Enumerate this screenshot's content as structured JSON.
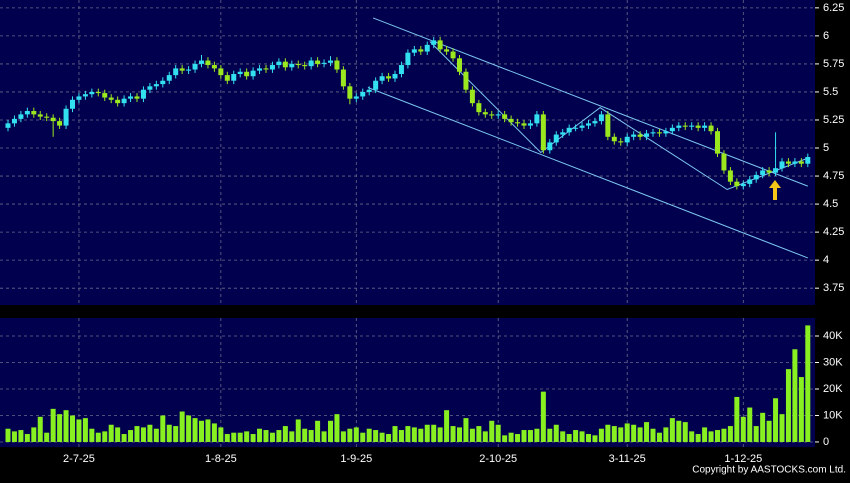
{
  "chart_data": [
    {
      "type": "candlestick",
      "up_color": "#33e0f0",
      "down_color": "#9be81e",
      "trendline_color": "#7ec8f0",
      "grid": true,
      "ylim": [
        3.6,
        6.32
      ],
      "yticks": [
        6.25,
        6,
        5.75,
        5.5,
        5.25,
        5,
        4.75,
        4.5,
        4.25,
        4,
        3.75
      ],
      "categories": [
        null,
        null,
        null,
        null,
        null,
        null,
        null,
        null,
        null,
        null,
        null,
        "2-7-25",
        null,
        null,
        null,
        null,
        null,
        null,
        null,
        null,
        null,
        null,
        null,
        null,
        null,
        null,
        null,
        null,
        null,
        null,
        null,
        null,
        null,
        "1-8-25",
        null,
        null,
        null,
        null,
        null,
        null,
        null,
        null,
        null,
        null,
        null,
        null,
        null,
        null,
        null,
        null,
        null,
        null,
        null,
        null,
        "1-9-25",
        null,
        null,
        null,
        null,
        null,
        null,
        null,
        null,
        null,
        null,
        null,
        null,
        null,
        null,
        null,
        null,
        null,
        null,
        null,
        null,
        null,
        "2-10-25",
        null,
        null,
        null,
        null,
        null,
        null,
        null,
        null,
        null,
        null,
        null,
        null,
        null,
        null,
        null,
        null,
        null,
        null,
        null,
        "3-11-25",
        null,
        null,
        null,
        null,
        null,
        null,
        null,
        null,
        null,
        null,
        null,
        null,
        null,
        null,
        null,
        null,
        null,
        "1-12-25",
        null,
        null,
        null,
        null,
        null,
        null,
        null,
        null,
        null,
        null
      ],
      "open": [
        5.18,
        5.22,
        5.26,
        5.3,
        5.33,
        5.3,
        5.28,
        5.27,
        5.24,
        5.2,
        5.35,
        5.43,
        5.46,
        5.48,
        5.5,
        5.49,
        5.45,
        5.43,
        5.4,
        5.44,
        5.46,
        5.44,
        5.52,
        5.55,
        5.57,
        5.6,
        5.65,
        5.71,
        5.69,
        5.7,
        5.75,
        5.78,
        5.74,
        5.71,
        5.65,
        5.6,
        5.66,
        5.68,
        5.64,
        5.69,
        5.71,
        5.7,
        5.74,
        5.77,
        5.72,
        5.75,
        5.74,
        5.73,
        5.78,
        5.75,
        5.76,
        5.78,
        5.7,
        5.55,
        5.44,
        5.46,
        5.5,
        5.52,
        5.6,
        5.64,
        5.62,
        5.66,
        5.74,
        5.85,
        5.88,
        5.86,
        5.92,
        5.96,
        5.88,
        5.86,
        5.8,
        5.68,
        5.52,
        5.4,
        5.32,
        5.3,
        5.29,
        5.3,
        5.26,
        5.23,
        5.22,
        5.2,
        5.22,
        5.3,
        4.98,
        5.05,
        5.12,
        5.14,
        5.18,
        5.18,
        5.2,
        5.22,
        5.24,
        5.3,
        5.1,
        5.06,
        5.05,
        5.1,
        5.12,
        5.1,
        5.13,
        5.14,
        5.13,
        5.15,
        5.18,
        5.2,
        5.19,
        5.2,
        5.18,
        5.2,
        5.15,
        4.95,
        4.8,
        4.7,
        4.66,
        4.68,
        4.72,
        4.76,
        4.8,
        4.78,
        4.82,
        4.88,
        4.86,
        4.88,
        4.86
      ],
      "high": [
        5.25,
        5.29,
        5.33,
        5.36,
        5.36,
        5.33,
        5.31,
        5.3,
        5.27,
        5.38,
        5.46,
        5.49,
        5.51,
        5.53,
        5.53,
        5.52,
        5.48,
        5.46,
        5.47,
        5.49,
        5.49,
        5.55,
        5.58,
        5.6,
        5.63,
        5.68,
        5.74,
        5.74,
        5.73,
        5.78,
        5.83,
        5.81,
        5.77,
        5.74,
        5.68,
        5.69,
        5.71,
        5.71,
        5.72,
        5.74,
        5.74,
        5.77,
        5.8,
        5.8,
        5.78,
        5.78,
        5.77,
        5.81,
        5.81,
        5.79,
        5.82,
        5.81,
        5.73,
        5.58,
        5.49,
        5.53,
        5.55,
        5.63,
        5.67,
        5.67,
        5.69,
        5.77,
        5.88,
        5.91,
        5.91,
        5.95,
        5.99,
        5.99,
        5.91,
        5.89,
        5.83,
        5.71,
        5.55,
        5.43,
        5.35,
        5.33,
        5.33,
        5.33,
        5.29,
        5.26,
        5.25,
        5.25,
        5.33,
        5.33,
        5.08,
        5.15,
        5.17,
        5.21,
        5.21,
        5.23,
        5.25,
        5.27,
        5.33,
        5.33,
        5.13,
        5.09,
        5.13,
        5.15,
        5.15,
        5.16,
        5.17,
        5.17,
        5.18,
        5.21,
        5.23,
        5.23,
        5.23,
        5.23,
        5.23,
        5.23,
        5.18,
        4.98,
        4.83,
        4.73,
        4.71,
        4.75,
        4.79,
        4.83,
        4.83,
        5.14,
        4.91,
        4.91,
        4.91,
        4.91,
        4.95
      ],
      "low": [
        5.15,
        5.19,
        5.23,
        5.27,
        5.27,
        5.25,
        5.24,
        5.1,
        5.17,
        5.17,
        5.32,
        5.4,
        5.43,
        5.45,
        5.46,
        5.42,
        5.4,
        5.37,
        5.37,
        5.41,
        5.41,
        5.41,
        5.49,
        5.52,
        5.54,
        5.57,
        5.62,
        5.66,
        5.66,
        5.67,
        5.72,
        5.71,
        5.68,
        5.62,
        5.57,
        5.57,
        5.63,
        5.61,
        5.61,
        5.66,
        5.67,
        5.67,
        5.71,
        5.69,
        5.69,
        5.71,
        5.7,
        5.7,
        5.72,
        5.72,
        5.73,
        5.67,
        5.52,
        5.39,
        5.41,
        5.43,
        5.47,
        5.49,
        5.57,
        5.59,
        5.59,
        5.63,
        5.71,
        5.82,
        5.83,
        5.83,
        5.89,
        5.85,
        5.83,
        5.77,
        5.65,
        5.49,
        5.37,
        5.29,
        5.27,
        5.26,
        5.26,
        5.23,
        5.2,
        5.19,
        5.17,
        5.17,
        5.19,
        4.95,
        4.95,
        5.02,
        5.09,
        5.11,
        5.15,
        5.15,
        5.17,
        5.19,
        5.21,
        5.07,
        5.03,
        5.02,
        5.02,
        5.07,
        5.07,
        5.07,
        5.1,
        5.1,
        5.1,
        5.12,
        5.15,
        5.16,
        5.16,
        5.15,
        5.15,
        5.12,
        4.92,
        4.77,
        4.67,
        4.63,
        4.63,
        4.65,
        4.69,
        4.73,
        4.75,
        4.75,
        4.79,
        4.83,
        4.83,
        4.83,
        4.83
      ],
      "close": [
        5.22,
        5.26,
        5.3,
        5.33,
        5.3,
        5.28,
        5.27,
        5.24,
        5.2,
        5.35,
        5.43,
        5.46,
        5.48,
        5.5,
        5.49,
        5.45,
        5.43,
        5.4,
        5.44,
        5.46,
        5.44,
        5.52,
        5.55,
        5.57,
        5.6,
        5.65,
        5.71,
        5.69,
        5.7,
        5.75,
        5.78,
        5.74,
        5.71,
        5.65,
        5.6,
        5.66,
        5.68,
        5.64,
        5.69,
        5.71,
        5.7,
        5.74,
        5.77,
        5.72,
        5.75,
        5.74,
        5.73,
        5.78,
        5.75,
        5.76,
        5.78,
        5.7,
        5.55,
        5.44,
        5.46,
        5.5,
        5.52,
        5.6,
        5.64,
        5.62,
        5.66,
        5.74,
        5.85,
        5.88,
        5.86,
        5.92,
        5.96,
        5.88,
        5.86,
        5.8,
        5.68,
        5.52,
        5.4,
        5.32,
        5.3,
        5.29,
        5.3,
        5.26,
        5.23,
        5.22,
        5.2,
        5.22,
        5.3,
        4.98,
        5.05,
        5.12,
        5.14,
        5.18,
        5.18,
        5.2,
        5.22,
        5.24,
        5.3,
        5.1,
        5.06,
        5.05,
        5.1,
        5.12,
        5.1,
        5.13,
        5.14,
        5.13,
        5.15,
        5.18,
        5.2,
        5.19,
        5.2,
        5.18,
        5.2,
        5.15,
        4.95,
        4.8,
        4.7,
        4.66,
        4.68,
        4.72,
        4.76,
        4.8,
        4.78,
        4.82,
        4.88,
        4.86,
        4.88,
        4.86,
        4.92
      ],
      "trendlines": [
        [
          [
            56.6,
            6.16
          ],
          [
            124,
            4.66
          ]
        ],
        [
          [
            55.8,
            5.54
          ],
          [
            124,
            4.02
          ]
        ],
        [
          [
            65.4,
            5.95
          ],
          [
            82.6,
            4.96
          ],
          [
            91.8,
            5.36
          ],
          [
            111.5,
            4.63
          ],
          [
            124,
            4.91
          ]
        ]
      ]
    },
    {
      "type": "bar",
      "color": "#88f020",
      "grid": true,
      "ylim": [
        -1900,
        46800
      ],
      "yticks": [
        {
          "value": 40000,
          "label": "40K"
        },
        {
          "value": 30000,
          "label": "30K"
        },
        {
          "value": 20000,
          "label": "20K"
        },
        {
          "value": 10000,
          "label": "10K"
        },
        0
      ],
      "values": [
        5000,
        4000,
        4500,
        3000,
        5500,
        9500,
        3500,
        12500,
        10500,
        12000,
        10000,
        8500,
        9000,
        5000,
        3500,
        4000,
        6500,
        5500,
        3000,
        4500,
        6000,
        5500,
        6500,
        5000,
        10000,
        6500,
        6000,
        11500,
        10000,
        9000,
        8000,
        8500,
        7000,
        5500,
        3000,
        3500,
        3500,
        4000,
        3000,
        5000,
        4500,
        3500,
        4500,
        6000,
        4000,
        8500,
        5000,
        4500,
        8000,
        4000,
        8000,
        10500,
        4000,
        5000,
        5500,
        3500,
        5000,
        4500,
        3500,
        3000,
        6000,
        4500,
        6000,
        5500,
        5000,
        6500,
        6500,
        5500,
        12000,
        6000,
        5500,
        9000,
        5000,
        6000,
        4000,
        8000,
        6500,
        2500,
        3500,
        3000,
        4500,
        4500,
        5000,
        19000,
        5000,
        6500,
        4000,
        3000,
        4500,
        4000,
        3000,
        2500,
        5000,
        6500,
        6000,
        5500,
        7000,
        6500,
        5500,
        7500,
        5000,
        3500,
        5500,
        9000,
        8000,
        7500,
        4000,
        3000,
        5500,
        4000,
        4500,
        5000,
        6000,
        17000,
        9500,
        13000,
        6000,
        11000,
        8000,
        16500,
        10500,
        27500,
        35000,
        24500,
        44000
      ]
    }
  ],
  "copyright": "Copyright by AASTOCKS.com Ltd."
}
